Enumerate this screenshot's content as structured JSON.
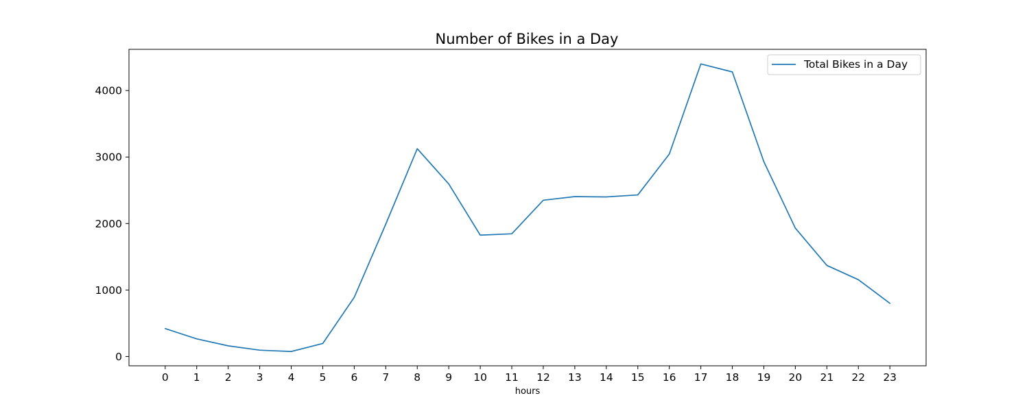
{
  "chart_data": {
    "type": "line",
    "title": "Number of Bikes in a Day",
    "xlabel": "hours",
    "ylabel": "",
    "x": [
      0,
      1,
      2,
      3,
      4,
      5,
      6,
      7,
      8,
      9,
      10,
      11,
      12,
      13,
      14,
      15,
      16,
      17,
      18,
      19,
      20,
      21,
      22,
      23
    ],
    "xticks": [
      "0",
      "1",
      "2",
      "3",
      "4",
      "5",
      "6",
      "7",
      "8",
      "9",
      "10",
      "11",
      "12",
      "13",
      "14",
      "15",
      "16",
      "17",
      "18",
      "19",
      "20",
      "21",
      "22",
      "23"
    ],
    "yticks": [
      0,
      1000,
      2000,
      3000,
      4000
    ],
    "ylim": [
      -140,
      4620
    ],
    "xlim": [
      -1.15,
      24.15
    ],
    "grid": false,
    "legend_position": "top-right",
    "series": [
      {
        "name": "Total Bikes in a Day",
        "color": "#1f77b4",
        "values": [
          420,
          265,
          160,
          95,
          75,
          195,
          890,
          1990,
          3125,
          2595,
          1825,
          1845,
          2350,
          2405,
          2400,
          2430,
          3045,
          4400,
          4280,
          2930,
          1930,
          1370,
          1155,
          800
        ]
      }
    ]
  }
}
